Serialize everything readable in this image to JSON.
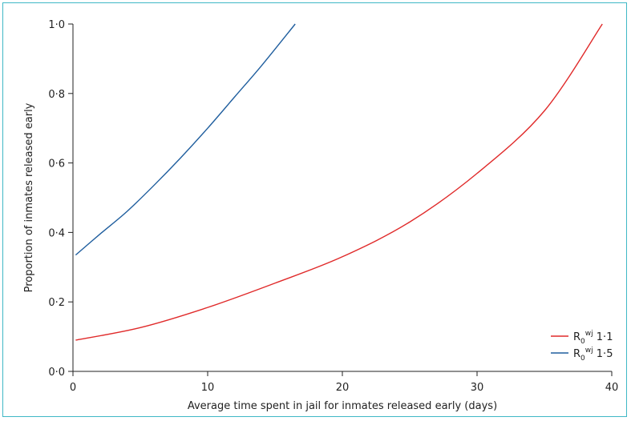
{
  "chart_data": {
    "type": "line",
    "xlabel": "Average time spent in jail for inmates released early (days)",
    "ylabel": "Proportion of inmates released early",
    "xlim": [
      0,
      40
    ],
    "ylim": [
      0,
      1
    ],
    "x_ticks": [
      "0",
      "10",
      "20",
      "30",
      "40"
    ],
    "y_ticks": [
      "0·0",
      "0·2",
      "0·4",
      "0·6",
      "0·8",
      "1·0"
    ],
    "grid": false,
    "legend_position": "bottom-right",
    "series": [
      {
        "name": "R0wj 1·1",
        "name_main": "R",
        "name_sub": "0",
        "name_sup": "wj",
        "name_value": "1·1",
        "color": "#e02a2a",
        "points": [
          [
            0.2,
            0.09
          ],
          [
            5,
            0.126
          ],
          [
            10,
            0.184
          ],
          [
            15,
            0.254
          ],
          [
            20,
            0.33
          ],
          [
            25,
            0.43
          ],
          [
            30,
            0.57
          ],
          [
            35,
            0.75
          ],
          [
            39.3,
            1.0
          ]
        ]
      },
      {
        "name": "R0wj 1·5",
        "name_main": "R",
        "name_sub": "0",
        "name_sup": "wj",
        "name_value": "1·5",
        "color": "#1f5e9e",
        "points": [
          [
            0.2,
            0.335
          ],
          [
            2,
            0.395
          ],
          [
            4,
            0.46
          ],
          [
            6,
            0.535
          ],
          [
            8,
            0.615
          ],
          [
            10,
            0.7
          ],
          [
            12,
            0.79
          ],
          [
            14,
            0.88
          ],
          [
            16.5,
            1.0
          ]
        ]
      }
    ]
  }
}
